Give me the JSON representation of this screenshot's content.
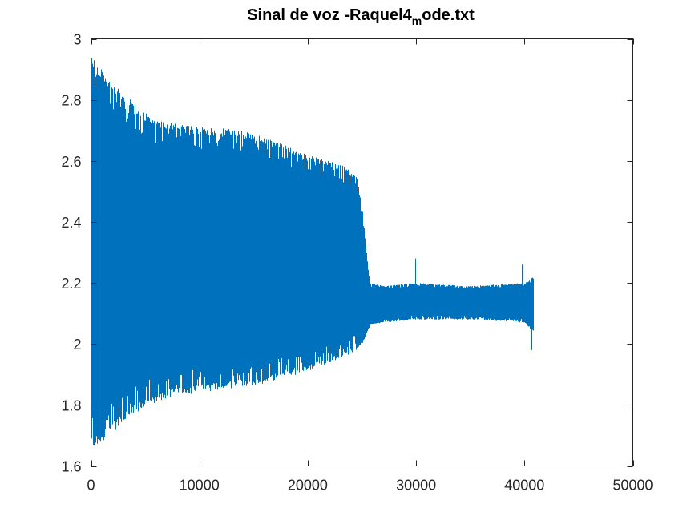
{
  "chart_data": {
    "type": "line",
    "title": {
      "main": "Sinal de voz -Raquel4",
      "subscript": "m",
      "suffix": "ode.txt"
    },
    "xlabel": "",
    "ylabel": "",
    "xlim": [
      0,
      50000
    ],
    "ylim": [
      1.6,
      3.0
    ],
    "xticks": [
      0,
      10000,
      20000,
      30000,
      40000,
      50000
    ],
    "yticks": [
      1.6,
      1.8,
      2.0,
      2.2,
      2.4,
      2.6,
      2.8,
      3.0
    ],
    "grid": false,
    "legend": "none",
    "series": [
      {
        "color": "#0072bd",
        "n_samples": 40800,
        "envelope_upper": [
          [
            0,
            2.95
          ],
          [
            1000,
            2.9
          ],
          [
            2000,
            2.86
          ],
          [
            3000,
            2.82
          ],
          [
            4000,
            2.79
          ],
          [
            5000,
            2.76
          ],
          [
            6000,
            2.74
          ],
          [
            8000,
            2.72
          ],
          [
            10000,
            2.71
          ],
          [
            12000,
            2.71
          ],
          [
            14000,
            2.7
          ],
          [
            16000,
            2.68
          ],
          [
            18000,
            2.65
          ],
          [
            20000,
            2.62
          ],
          [
            22000,
            2.6
          ],
          [
            23500,
            2.58
          ],
          [
            24500,
            2.55
          ],
          [
            25000,
            2.45
          ],
          [
            25400,
            2.3
          ],
          [
            25700,
            2.2
          ],
          [
            27000,
            2.19
          ],
          [
            30000,
            2.2
          ],
          [
            35000,
            2.19
          ],
          [
            40000,
            2.2
          ],
          [
            40800,
            2.22
          ]
        ],
        "envelope_lower": [
          [
            0,
            1.65
          ],
          [
            1000,
            1.68
          ],
          [
            2000,
            1.71
          ],
          [
            3000,
            1.74
          ],
          [
            4000,
            1.77
          ],
          [
            5000,
            1.79
          ],
          [
            6000,
            1.81
          ],
          [
            8000,
            1.83
          ],
          [
            10000,
            1.84
          ],
          [
            12000,
            1.85
          ],
          [
            14000,
            1.86
          ],
          [
            16000,
            1.87
          ],
          [
            18000,
            1.89
          ],
          [
            20000,
            1.91
          ],
          [
            22000,
            1.94
          ],
          [
            23500,
            1.96
          ],
          [
            24500,
            1.98
          ],
          [
            25000,
            2.0
          ],
          [
            25400,
            2.03
          ],
          [
            25700,
            2.06
          ],
          [
            27000,
            2.07
          ],
          [
            30000,
            2.08
          ],
          [
            35000,
            2.08
          ],
          [
            40000,
            2.07
          ],
          [
            40800,
            2.03
          ]
        ],
        "notable_spikes": [
          {
            "x": 29900,
            "y": 2.28
          },
          {
            "x": 39800,
            "y": 2.26
          },
          {
            "x": 40600,
            "y": 1.98
          }
        ]
      }
    ]
  }
}
